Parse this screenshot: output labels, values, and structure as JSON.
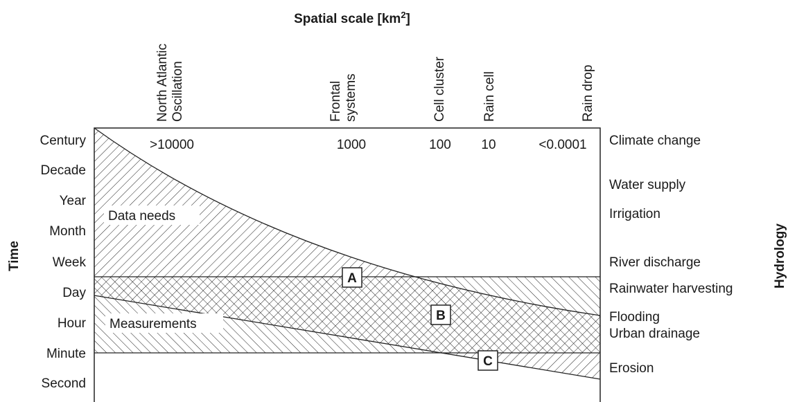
{
  "header": {
    "title": {
      "text": "Spatial scale [km",
      "superscript": "2",
      "suffix": "]"
    }
  },
  "columns": [
    {
      "lines": [
        "North Atlantic",
        "Oscillation"
      ],
      "scale": ">10000"
    },
    {
      "lines": [
        "Frontal",
        "systems"
      ],
      "scale": "1000"
    },
    {
      "lines": [
        "Cell cluster"
      ],
      "scale": "100"
    },
    {
      "lines": [
        "Rain cell"
      ],
      "scale": "10"
    },
    {
      "lines": [
        "Rain drop"
      ],
      "scale": "<0.0001"
    }
  ],
  "time_axis": {
    "label": "Time",
    "rows": [
      "Century",
      "Decade",
      "Year",
      "Month",
      "Week",
      "Day",
      "Hour",
      "Minute",
      "Second"
    ]
  },
  "hydrology_axis": {
    "label": "Hydrology",
    "rows": [
      "Climate change",
      "Water supply",
      "Irrigation",
      "River discharge",
      "Rainwater harvesting",
      "Flooding",
      "Urban drainage",
      "Erosion"
    ]
  },
  "regions": {
    "data_needs": "Data needs",
    "measurements": "Measurements"
  },
  "markers": [
    "A",
    "B",
    "C"
  ]
}
